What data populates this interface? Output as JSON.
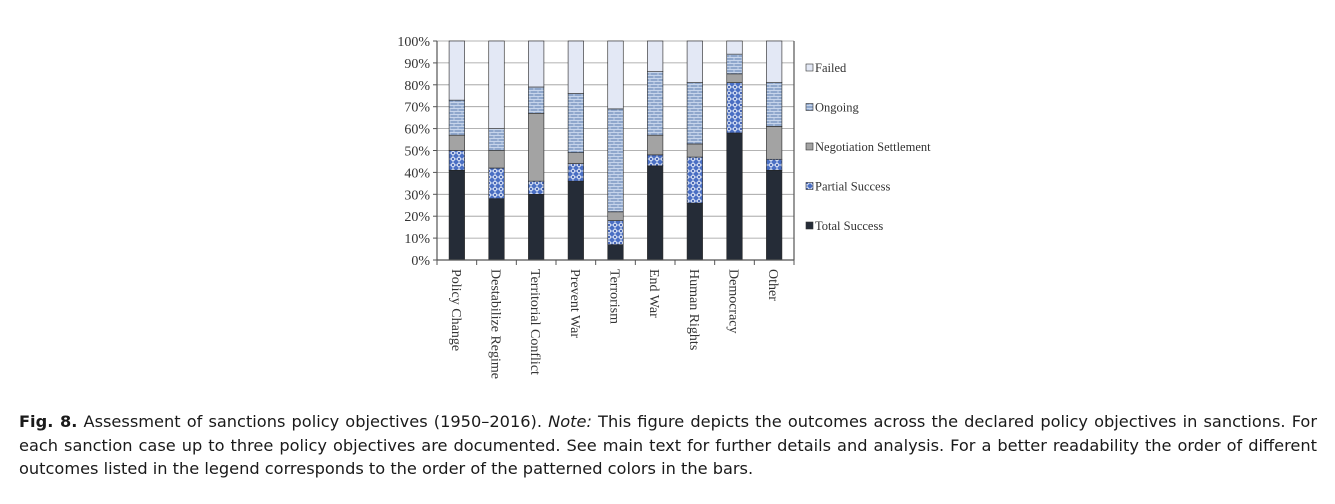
{
  "chart_data": {
    "type": "bar",
    "stacked": true,
    "normalized": true,
    "title": "",
    "xlabel": "",
    "ylabel": "",
    "ylim": [
      0,
      100
    ],
    "yticks": [
      "0%",
      "10%",
      "20%",
      "30%",
      "40%",
      "50%",
      "60%",
      "70%",
      "80%",
      "90%",
      "100%"
    ],
    "grid": true,
    "legend_position": "right",
    "categories": [
      "Policy Change",
      "Destabilize Regime",
      "Territorial Conflict",
      "Prevent War",
      "Terrorism",
      "End War",
      "Human Rights",
      "Democracy",
      "Other"
    ],
    "series": [
      {
        "name": "Total Success",
        "color": "#252c37",
        "pattern": "solid",
        "values": [
          41,
          28,
          30,
          36,
          7,
          43,
          26,
          58,
          41
        ]
      },
      {
        "name": "Partial Success",
        "color": "#4a6fc4",
        "pattern": "diamond",
        "values": [
          9,
          14,
          6,
          8,
          11,
          5,
          21,
          23,
          5
        ]
      },
      {
        "name": "Negotiation Settlement",
        "color": "#a3a3a3",
        "pattern": "solid",
        "values": [
          7,
          8,
          31,
          5,
          4,
          9,
          6,
          4,
          15
        ]
      },
      {
        "name": "Ongoing",
        "color": "#98aed0",
        "pattern": "brick",
        "values": [
          16,
          10,
          12,
          27,
          47,
          29,
          28,
          9,
          20
        ]
      },
      {
        "name": "Failed",
        "color": "#e3e8f5",
        "pattern": "solid",
        "values": [
          27,
          40,
          21,
          24,
          31,
          14,
          19,
          6,
          19
        ]
      }
    ],
    "legend_order": [
      "Failed",
      "Ongoing",
      "Negotiation Settlement",
      "Partial Success",
      "Total Success"
    ]
  },
  "caption": {
    "label": "Fig. 8.",
    "text": " Assessment of sanctions policy objectives (1950–2016). ",
    "note_label": "Note:",
    "note_text": " This figure depicts the outcomes across the declared policy objectives in sanctions. For each sanction case up to three policy objectives are documented. See main text for further details and analysis. For a better readability the order of different outcomes listed in the legend corresponds to the order of the patterned colors in the bars."
  }
}
